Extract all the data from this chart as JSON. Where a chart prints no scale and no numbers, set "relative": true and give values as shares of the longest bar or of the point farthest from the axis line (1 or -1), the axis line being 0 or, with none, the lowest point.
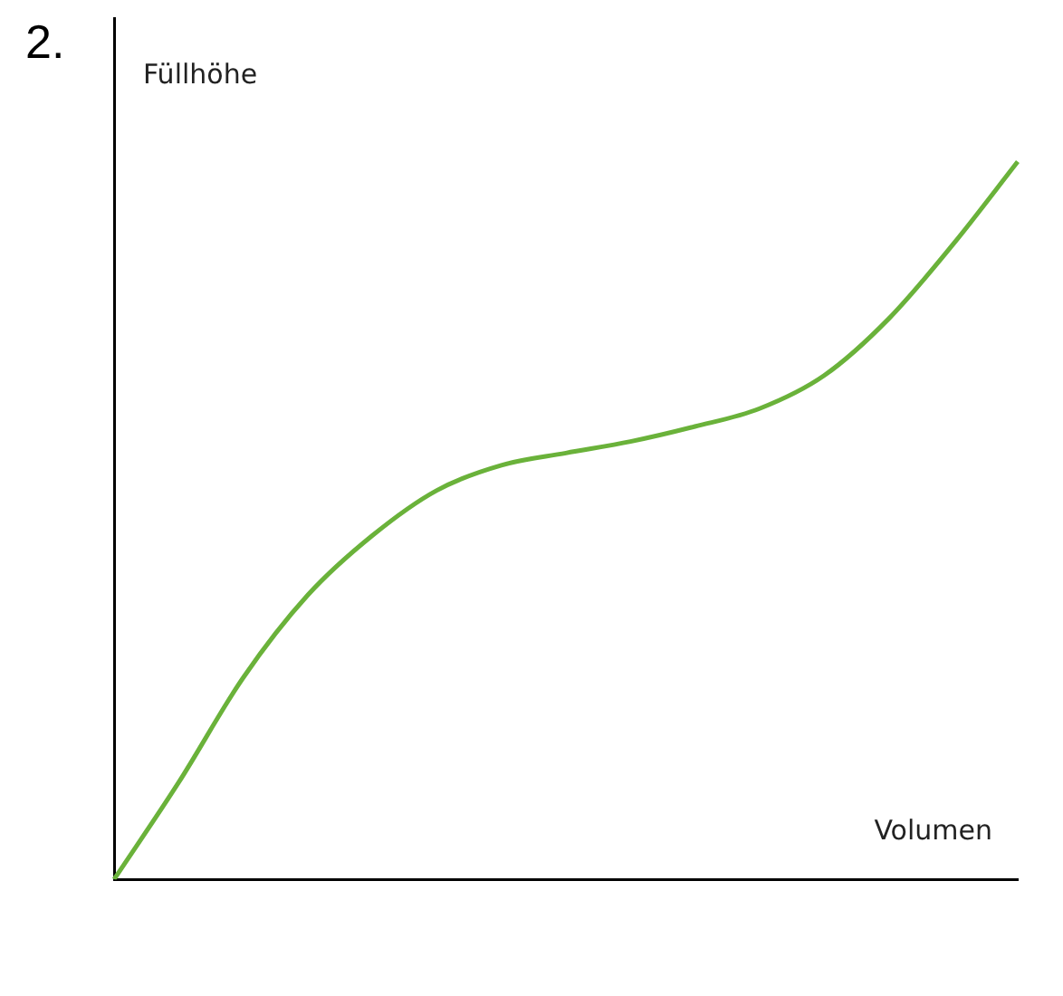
{
  "chart_data": {
    "type": "line",
    "relative": true,
    "xlabel": "Volumen",
    "ylabel": "Füllhöhe",
    "annotations": [
      "2."
    ],
    "categories": [
      null,
      null,
      null,
      null,
      null,
      null,
      null,
      null,
      null,
      null,
      null,
      null,
      null,
      null,
      null
    ],
    "series": [
      {
        "color": "#6ab23a",
        "values": [
          0,
          0.135,
          0.281,
          0.396,
          0.479,
          0.542,
          0.577,
          0.594,
          0.61,
          0.631,
          0.656,
          0.702,
          0.781,
          0.885,
          1
        ]
      }
    ],
    "grid": false,
    "legend": false,
    "marker": "none",
    "line_style": "solid"
  }
}
